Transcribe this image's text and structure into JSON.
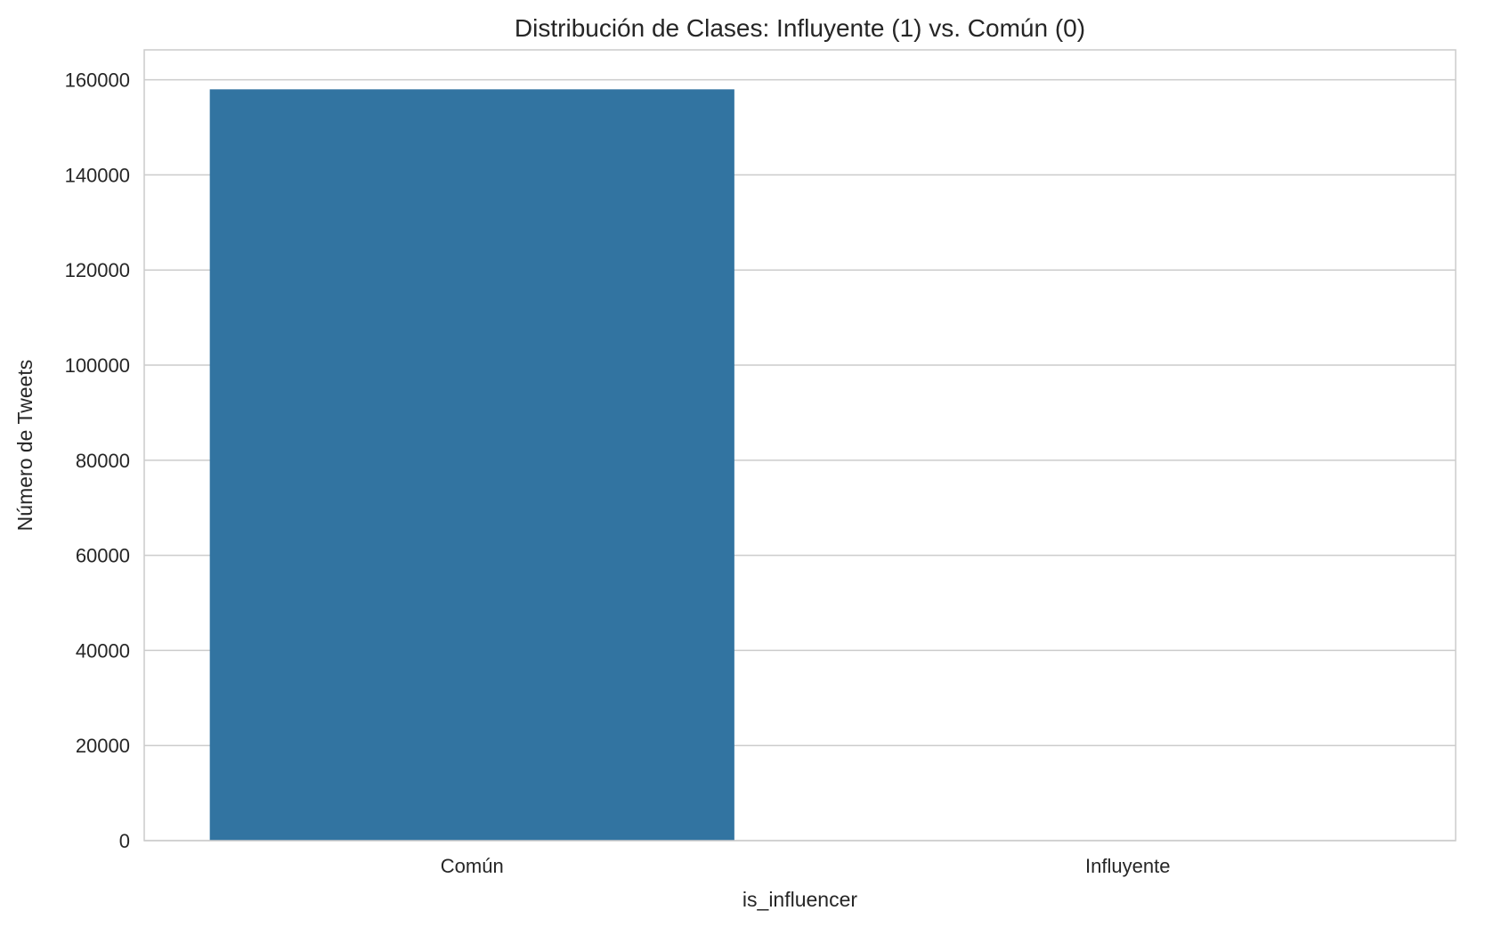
{
  "chart_data": {
    "type": "bar",
    "title": "Distribución de Clases: Influyente (1) vs. Común (0)",
    "xlabel": "is_influencer",
    "ylabel": "Número de Tweets",
    "categories": [
      "Común",
      "Influyente"
    ],
    "values": [
      158000,
      0
    ],
    "ylim": [
      0,
      166300
    ],
    "yticks": [
      0,
      20000,
      40000,
      60000,
      80000,
      100000,
      120000,
      140000,
      160000
    ],
    "grid": true,
    "bar_color": "#3274a1",
    "grid_color": "#cccccc",
    "spine_color": "#cccccc"
  }
}
